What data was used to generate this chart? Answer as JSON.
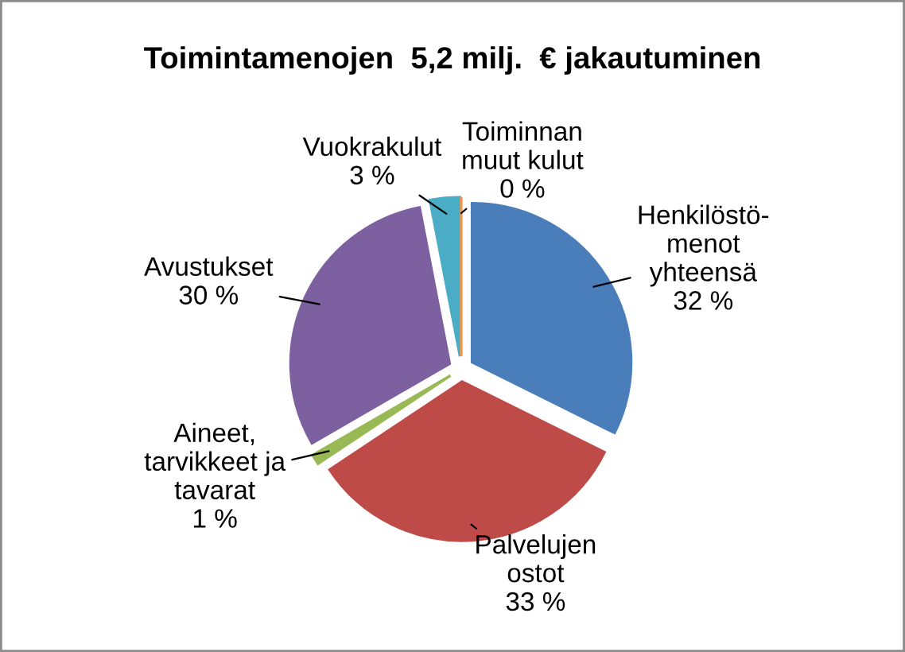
{
  "chart_data": {
    "type": "pie",
    "title": "Toimintamenojen  5,2 milj.  € jakautuminen",
    "categories": [
      "Henkilöstö-\nmenot\nyhteensä",
      "Palvelujen\nostot",
      "Aineet,\ntarvikkeet ja\ntavarat",
      "Avustukset",
      "Vuokrakulut",
      "Toiminnan\nmuut kulut"
    ],
    "values": [
      32,
      33,
      1,
      30,
      3,
      0
    ],
    "colors": [
      "#4a7ebb",
      "#be4b48",
      "#98b954",
      "#7d60a0",
      "#4bacc6",
      "#f79646"
    ],
    "value_labels": [
      "32 %",
      "33 %",
      "1 %",
      "30 %",
      "3 %",
      "0 %"
    ]
  }
}
